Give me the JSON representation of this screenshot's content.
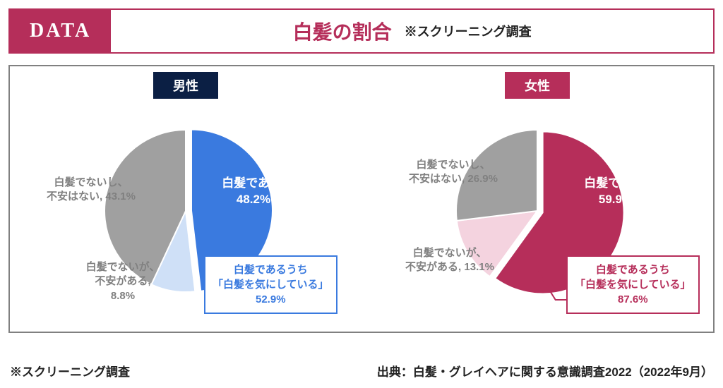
{
  "header": {
    "badge": "DATA",
    "title": "白髪の割合",
    "subtitle": "※スクリーニング調査"
  },
  "charts": {
    "male": {
      "label": "男性",
      "label_bg": "#0b1f44",
      "slices": [
        {
          "name": "白髪である",
          "value": 48.2,
          "color": "#3a7adf",
          "text_color": "#ffffff"
        },
        {
          "name": "白髪でないが、\n不安がある",
          "value": 8.8,
          "color": "#cfe0f7",
          "text_color": "#808080"
        },
        {
          "name": "白髪でないし、\n不安はない",
          "value": 43.1,
          "color": "#a0a0a0",
          "text_color": "#808080"
        }
      ],
      "callout": {
        "line1": "白髪であるうち",
        "line2": "「白髪を気にしている」",
        "pct": "52.9%",
        "border": "#3a7adf"
      }
    },
    "female": {
      "label": "女性",
      "label_bg": "#b62e5a",
      "slices": [
        {
          "name": "白髪である",
          "value": 59.9,
          "color": "#b62e5a",
          "text_color": "#ffffff"
        },
        {
          "name": "白髪でないが、\n不安がある",
          "value": 13.1,
          "color": "#f4d3df",
          "text_color": "#808080"
        },
        {
          "name": "白髪でないし、\n不安はない",
          "value": 26.9,
          "color": "#a0a0a0",
          "text_color": "#808080"
        }
      ],
      "callout": {
        "line1": "白髪であるうち",
        "line2": "「白髪を気にしている」",
        "pct": "87.6%",
        "border": "#b62e5a"
      }
    },
    "pie_radius": 115,
    "start_angle_deg": -90,
    "explode_first": 8
  },
  "footer": {
    "left": "※スクリーニング調査",
    "right": "出典：白髪・グレイヘアに関する意識調査2022（2022年9月）"
  },
  "colors": {
    "accent": "#b52e5a",
    "frame_border": "#808080",
    "background": "#ffffff"
  }
}
